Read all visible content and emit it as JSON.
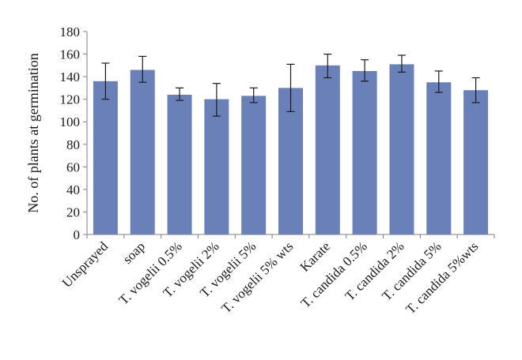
{
  "chart_data": {
    "type": "bar",
    "title": "",
    "xlabel": "",
    "ylabel": "No. of plants at germination",
    "ylim": [
      0,
      180
    ],
    "yticks": [
      0,
      20,
      40,
      60,
      80,
      100,
      120,
      140,
      160,
      180
    ],
    "grid": false,
    "legend": "none",
    "categories": [
      "Unsprayed",
      "soap",
      "T. vogelii 0.5%",
      "T. vogelii 2%",
      "T. vogelii 5%",
      "T. vogelii 5% wts",
      "Karate",
      "T. candida 0.5%",
      "T. candida 2%",
      "T. candida 5%",
      "T. candida 5%wts"
    ],
    "values": [
      136,
      146,
      124,
      120,
      123,
      130,
      150,
      145,
      151,
      135,
      128
    ],
    "error_low": [
      120,
      135,
      119,
      105,
      117,
      109,
      139,
      136,
      144,
      126,
      117
    ],
    "error_high": [
      152,
      158,
      130,
      134,
      130,
      151,
      160,
      155,
      159,
      145,
      139
    ],
    "colors": {
      "bar": "#6a80b9",
      "error": "#1a1a1a",
      "axis": "#7f7f7f"
    }
  }
}
